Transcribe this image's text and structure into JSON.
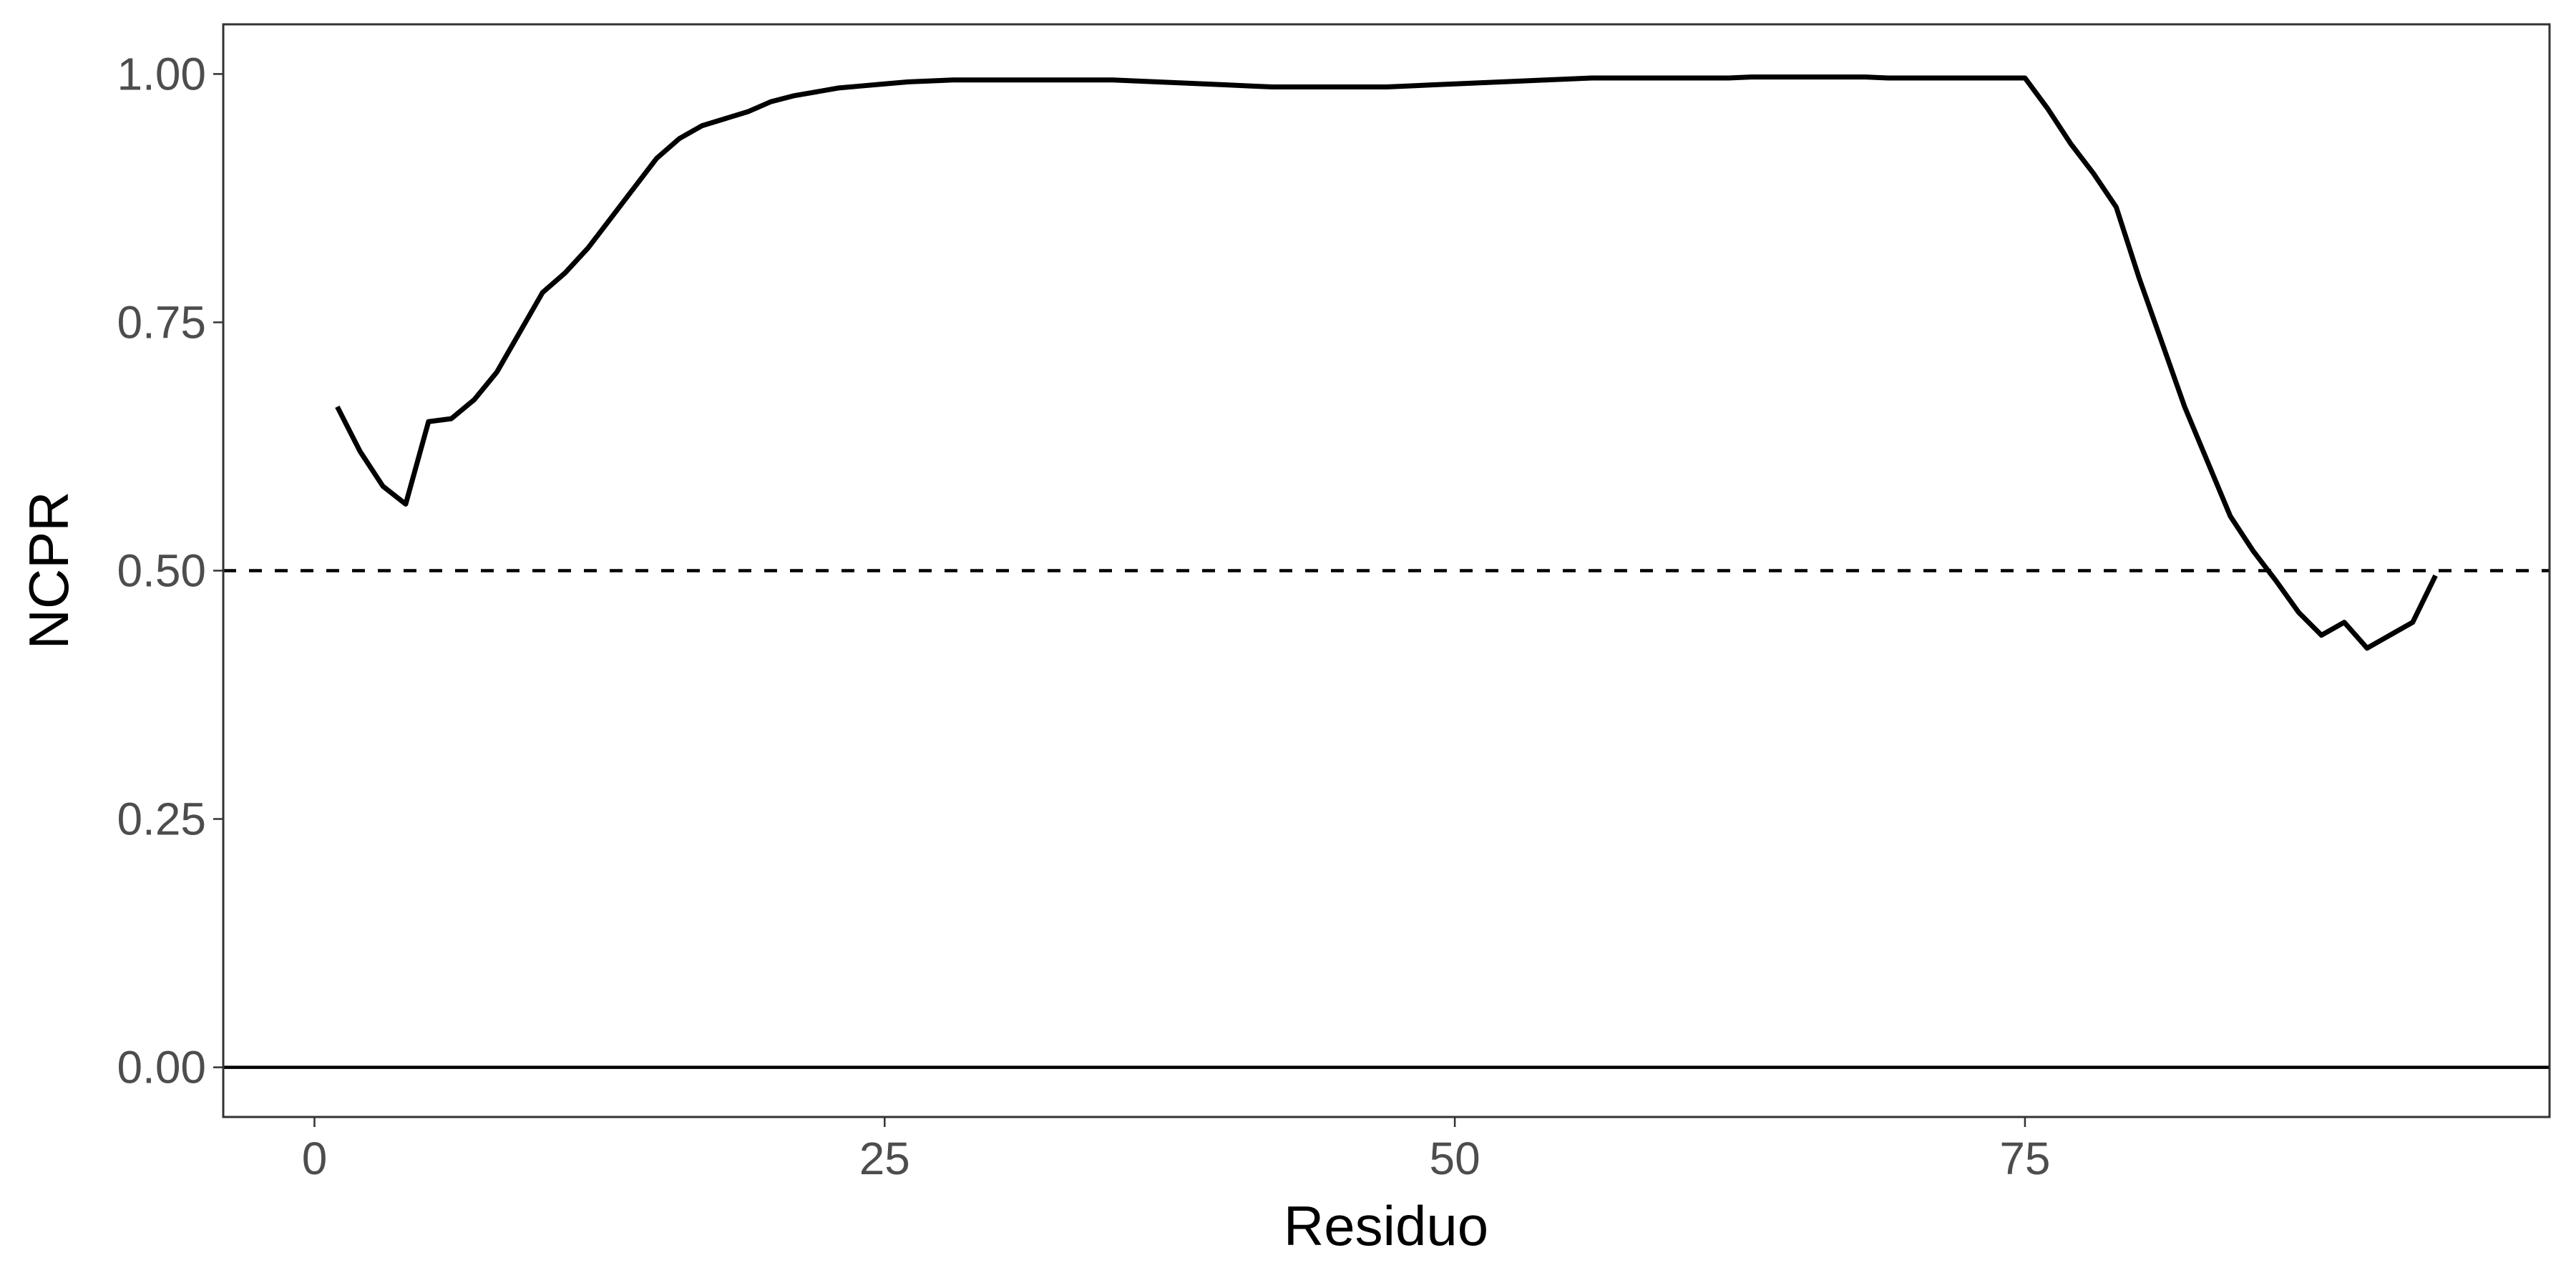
{
  "chart_data": {
    "type": "line",
    "x_label": "Residuo",
    "y_label": "NCPR",
    "x": [
      1,
      2,
      3,
      4,
      5,
      6,
      7,
      8,
      9,
      10,
      11,
      12,
      13,
      14,
      15,
      16,
      17,
      18,
      19,
      20,
      21,
      22,
      23,
      24,
      25,
      26,
      27,
      28,
      29,
      30,
      31,
      32,
      33,
      34,
      35,
      36,
      37,
      38,
      39,
      40,
      41,
      42,
      43,
      44,
      45,
      46,
      47,
      48,
      49,
      50,
      51,
      52,
      53,
      54,
      55,
      56,
      57,
      58,
      59,
      60,
      61,
      62,
      63,
      64,
      65,
      66,
      67,
      68,
      69,
      70,
      71,
      72,
      73,
      74,
      75,
      76,
      77,
      78,
      79,
      80,
      81,
      82,
      83,
      84,
      85,
      86,
      87,
      88,
      89,
      90,
      91,
      92,
      93
    ],
    "series": [
      {
        "color": "#000000",
        "values": [
          0.665,
          0.62,
          0.585,
          0.567,
          0.65,
          0.653,
          0.672,
          0.7,
          0.74,
          0.78,
          0.8,
          0.825,
          0.855,
          0.885,
          0.915,
          0.935,
          0.948,
          0.955,
          0.962,
          0.972,
          0.978,
          0.982,
          0.986,
          0.988,
          0.99,
          0.992,
          0.993,
          0.994,
          0.994,
          0.994,
          0.994,
          0.994,
          0.994,
          0.994,
          0.994,
          0.993,
          0.992,
          0.991,
          0.99,
          0.989,
          0.988,
          0.987,
          0.987,
          0.987,
          0.987,
          0.987,
          0.987,
          0.988,
          0.989,
          0.99,
          0.991,
          0.992,
          0.993,
          0.994,
          0.995,
          0.996,
          0.996,
          0.996,
          0.996,
          0.996,
          0.996,
          0.996,
          0.997,
          0.997,
          0.997,
          0.997,
          0.997,
          0.997,
          0.996,
          0.996,
          0.996,
          0.996,
          0.996,
          0.996,
          0.996,
          0.965,
          0.93,
          0.9,
          0.866,
          0.795,
          0.73,
          0.665,
          0.61,
          0.555,
          0.52,
          0.49,
          0.458,
          0.435,
          0.448,
          0.422,
          0.435,
          0.448,
          0.495
        ]
      }
    ],
    "reference_lines": [
      {
        "y": 0.5,
        "style": "dashed"
      },
      {
        "y": 0,
        "style": "solid"
      }
    ],
    "xlim": [
      -4,
      98
    ],
    "ylim": [
      -0.05,
      1.05
    ],
    "xticks": [
      0,
      25,
      50,
      75
    ],
    "yticks": [
      {
        "value": 0,
        "label": "0.00"
      },
      {
        "value": 0.25,
        "label": "0.25"
      },
      {
        "value": 0.5,
        "label": "0.50"
      },
      {
        "value": 0.75,
        "label": "0.75"
      },
      {
        "value": 1,
        "label": "1.00"
      }
    ],
    "grid": false
  }
}
